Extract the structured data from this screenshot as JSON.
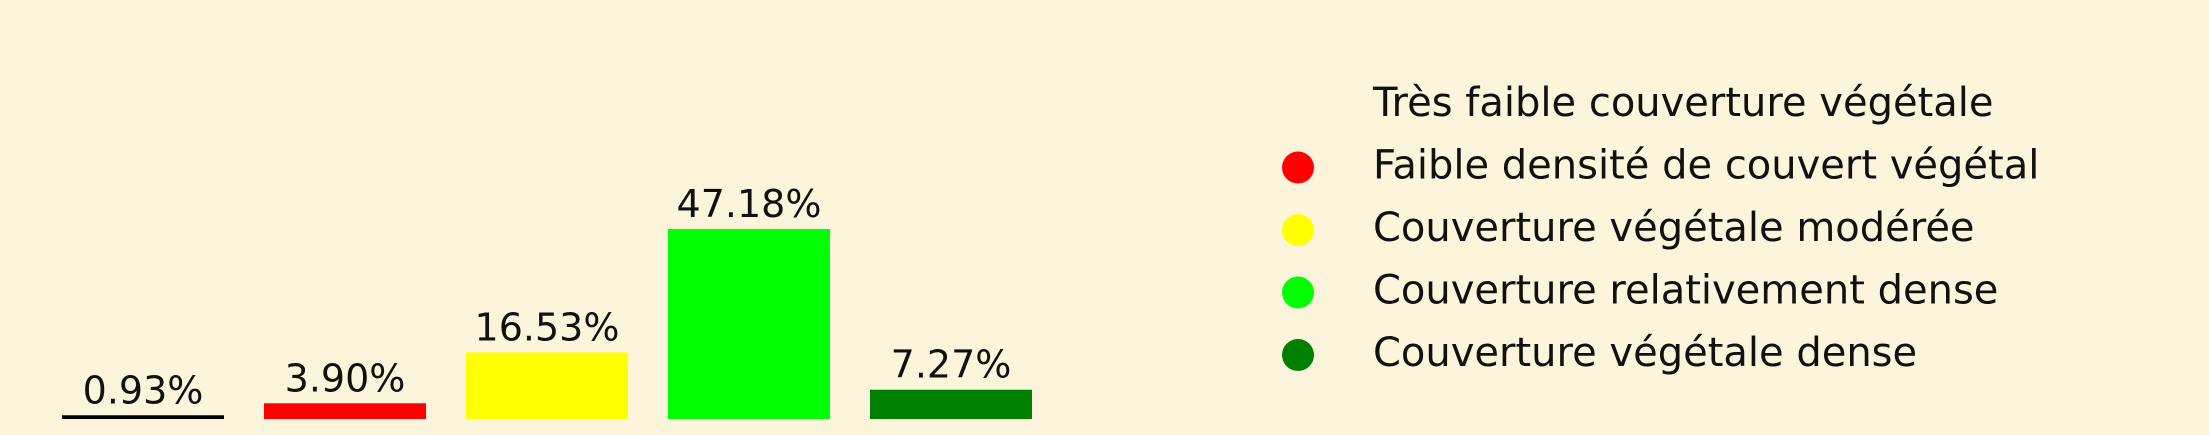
{
  "chart_data": {
    "type": "bar",
    "categories": [
      "Très faible couverture végétale",
      "Faible densité de couvert végétal",
      "Couverture végétale modérée",
      "Couverture relativement dense",
      "Couverture végétale dense"
    ],
    "values": [
      0.93,
      3.9,
      16.53,
      47.18,
      7.27
    ],
    "data_labels": [
      "0.93%",
      "3.90%",
      "16.53%",
      "47.18%",
      "7.27%"
    ],
    "colors": [
      "#000000",
      "#ff0000",
      "#ffff00",
      "#00ff00",
      "#008000"
    ],
    "legend": {
      "placement": "right",
      "entries": [
        {
          "label": "Très faible couverture végétale",
          "color": "#fdf5db"
        },
        {
          "label": "Faible densité de couvert végétal",
          "color": "#ff0000"
        },
        {
          "label": "Couverture végétale modérée",
          "color": "#ffff00"
        },
        {
          "label": "Couverture relativement dense",
          "color": "#00ff00"
        },
        {
          "label": "Couverture végétale dense",
          "color": "#008000"
        }
      ]
    },
    "ylim": [
      0,
      47.18
    ],
    "grid": false,
    "axes_visible": false
  }
}
